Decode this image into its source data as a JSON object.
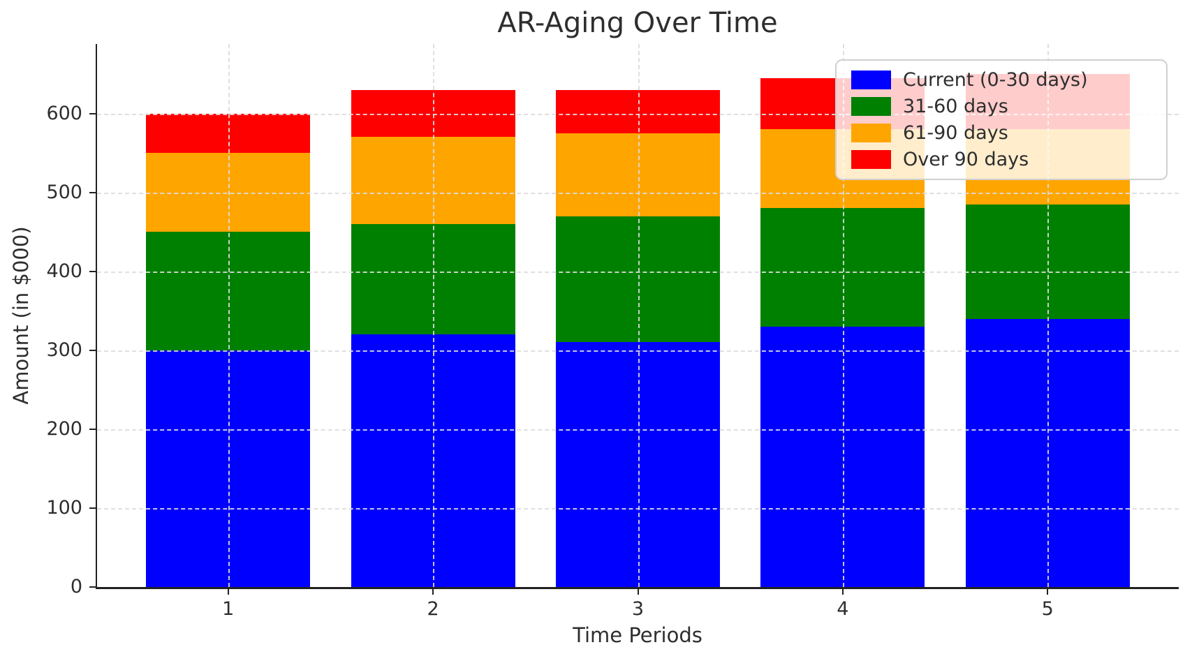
{
  "chart_data": {
    "type": "bar",
    "stacked": true,
    "title": "AR-Aging Over Time",
    "xlabel": "Time Periods",
    "ylabel": "Amount (in $000)",
    "categories": [
      "1",
      "2",
      "3",
      "4",
      "5"
    ],
    "series": [
      {
        "name": "Current (0-30 days)",
        "color": "#0000ff",
        "values": [
          300,
          320,
          310,
          330,
          340
        ]
      },
      {
        "name": "31-60 days",
        "color": "#008000",
        "values": [
          150,
          140,
          160,
          150,
          145
        ]
      },
      {
        "name": "61-90 days",
        "color": "#ffa500",
        "values": [
          100,
          110,
          105,
          100,
          95
        ]
      },
      {
        "name": "Over 90 days",
        "color": "#ff0000",
        "values": [
          50,
          60,
          55,
          65,
          70
        ]
      }
    ],
    "yticks": [
      0,
      100,
      200,
      300,
      400,
      500,
      600
    ],
    "ylim": [
      0,
      688
    ],
    "grid": true,
    "grid_style": "dashed",
    "legend_position": "upper right"
  }
}
